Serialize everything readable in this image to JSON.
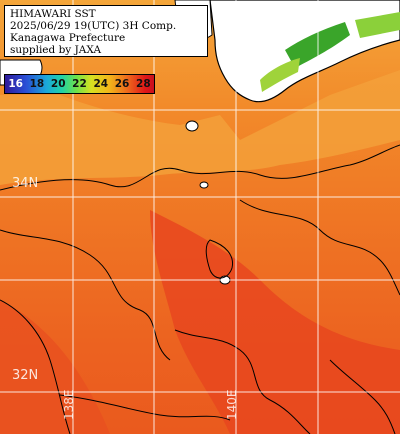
{
  "info_box": {
    "lines": [
      "HIMAWARI SST",
      "2025/06/29 19(UTC) 3H Comp.",
      "Kanagawa Prefecture",
      "supplied by JAXA"
    ]
  },
  "legend": {
    "labels": [
      "16",
      "18",
      "20",
      "22",
      "24",
      "26",
      "28"
    ],
    "unit_scale": "sea-surface-temperature"
  },
  "grid": {
    "lat_labels": [
      "34N",
      "32N"
    ],
    "lon_labels": [
      "138E",
      "140E"
    ]
  },
  "colors": {
    "sea_warm": "#f07822",
    "sea_hot": "#e8421e",
    "sea_cool": "#f3a23a",
    "land": "#ffffff",
    "coast": "#000000",
    "grid": "#ffffff"
  }
}
